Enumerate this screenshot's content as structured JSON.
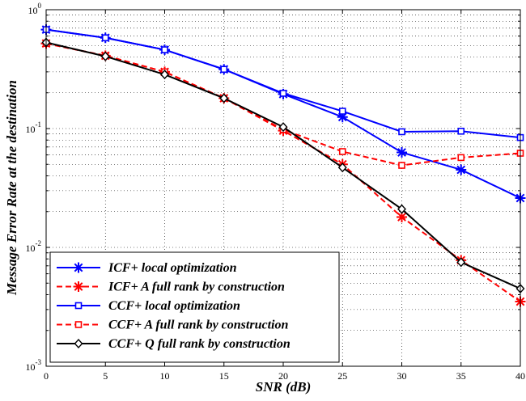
{
  "chart_data": {
    "type": "line",
    "xlabel": "SNR (dB)",
    "ylabel": "Message Error Rate at the destination",
    "xlim": [
      0,
      40
    ],
    "ylim": [
      0.001,
      1
    ],
    "yscale": "log",
    "grid": true,
    "legend_position": "bottom-left",
    "x_ticks": [
      "0",
      "5",
      "10",
      "15",
      "20",
      "25",
      "30",
      "35",
      "40"
    ],
    "y_ticks": [
      {
        "base": "10",
        "exp": "-3"
      },
      {
        "base": "10",
        "exp": "-2"
      },
      {
        "base": "10",
        "exp": "-1"
      },
      {
        "base": "10",
        "exp": "0"
      }
    ],
    "x": [
      0,
      5,
      10,
      15,
      20,
      25,
      30,
      35,
      40
    ],
    "series": [
      {
        "name": "ICF+ local optimization",
        "color": "#0000ff",
        "line": "solid",
        "marker": "star",
        "values": [
          0.68,
          0.58,
          0.46,
          0.315,
          0.195,
          0.125,
          0.063,
          0.045,
          0.026
        ]
      },
      {
        "name": "ICF+ A full rank by construction",
        "color": "#ff0000",
        "line": "dashed",
        "marker": "star",
        "values": [
          0.52,
          0.41,
          0.3,
          0.18,
          0.096,
          0.05,
          0.018,
          0.0078,
          0.0035
        ]
      },
      {
        "name": "CCF+ local optimization",
        "color": "#0000ff",
        "line": "solid",
        "marker": "square",
        "values": [
          0.68,
          0.58,
          0.46,
          0.315,
          0.198,
          0.14,
          0.094,
          0.095,
          0.084
        ]
      },
      {
        "name": "CCF+ A full rank by construction",
        "color": "#ff0000",
        "line": "dashed",
        "marker": "square",
        "values": [
          0.52,
          0.41,
          0.3,
          0.18,
          0.098,
          0.064,
          0.049,
          0.057,
          0.062
        ]
      },
      {
        "name": "CCF+ Q full rank by construction",
        "color": "#000000",
        "line": "solid",
        "marker": "diamond",
        "values": [
          0.53,
          0.405,
          0.285,
          0.18,
          0.103,
          0.047,
          0.021,
          0.0075,
          0.0045
        ]
      }
    ]
  }
}
